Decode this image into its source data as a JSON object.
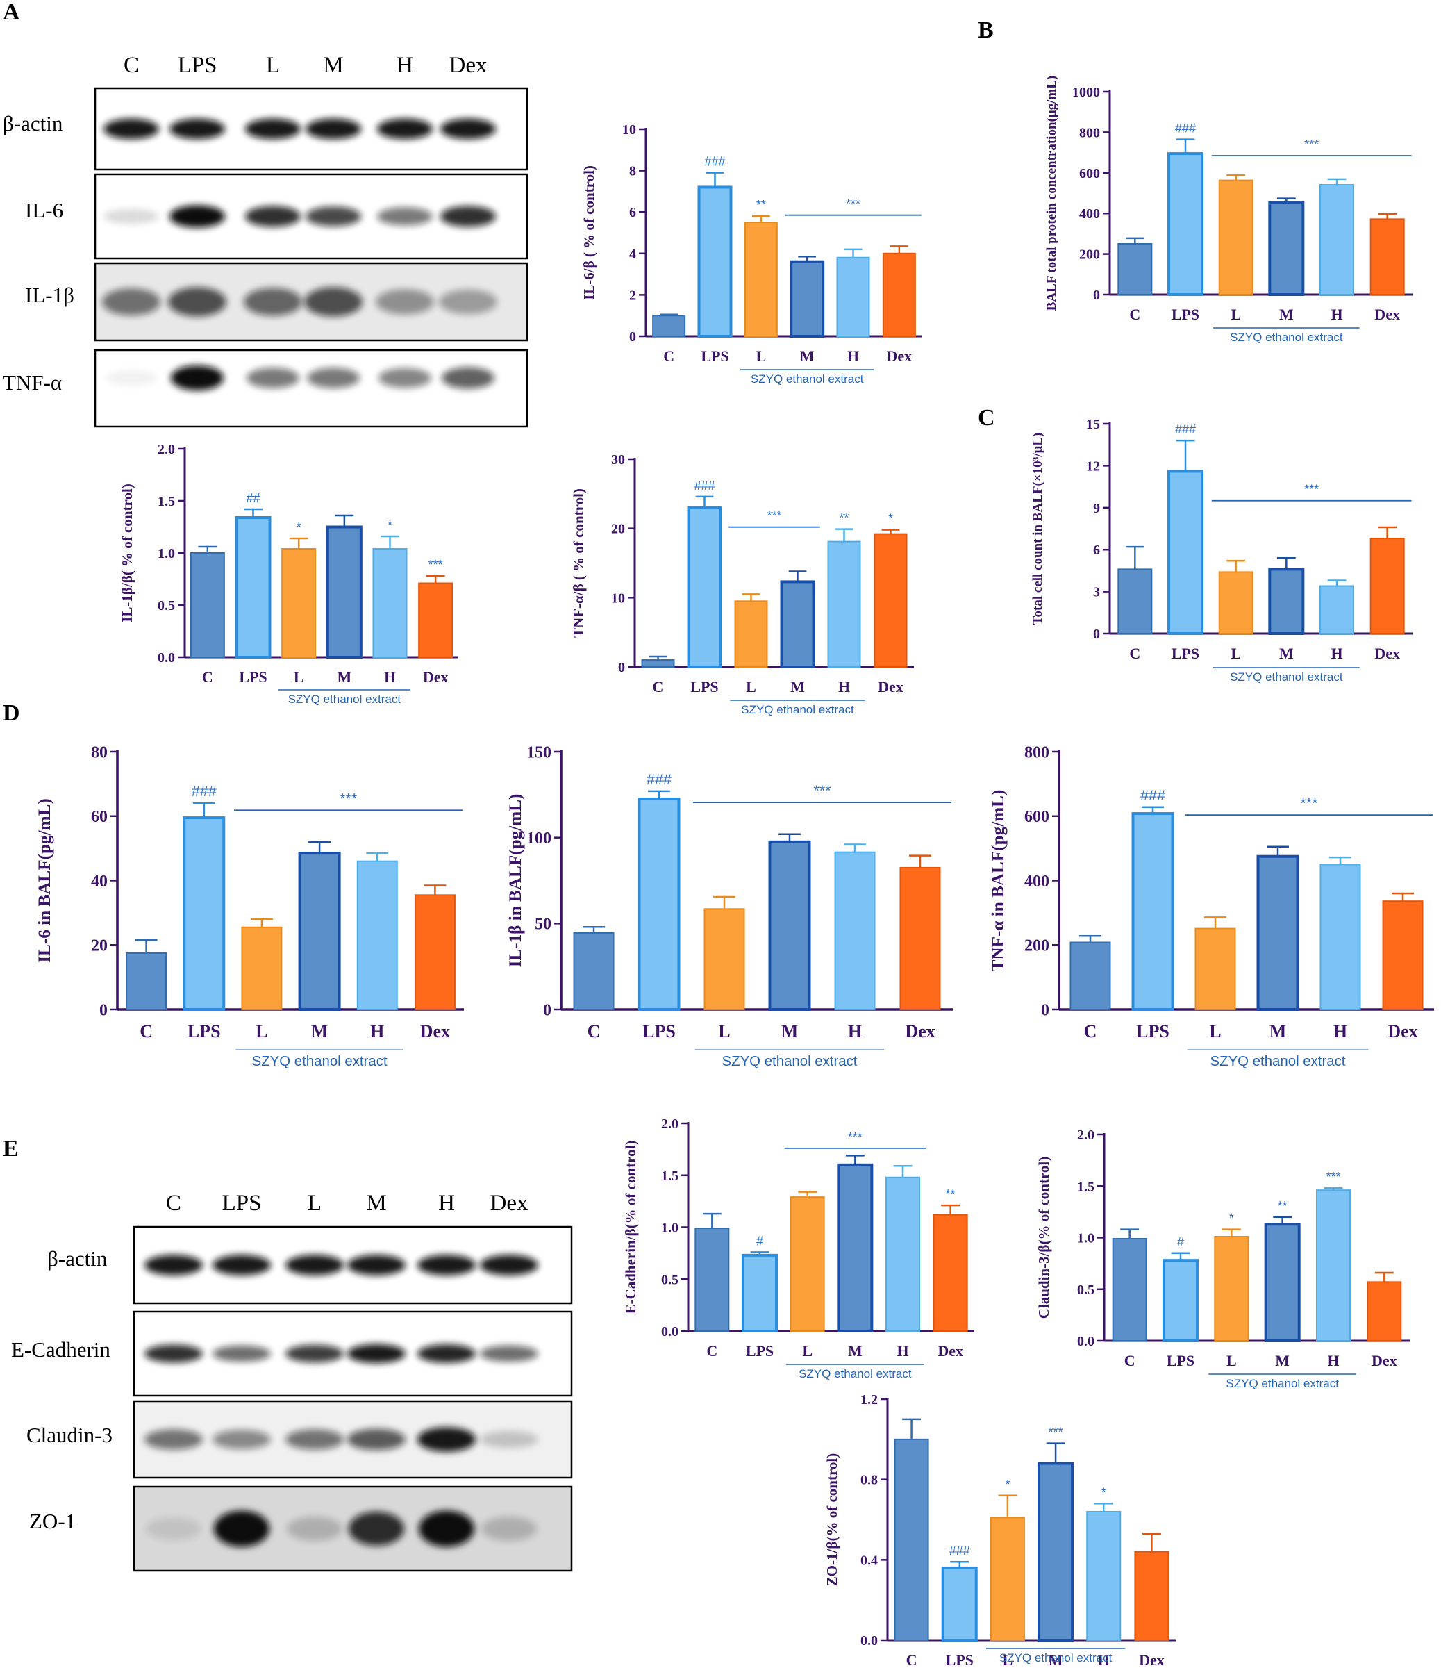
{
  "panels": {
    "A": "A",
    "B": "B",
    "C": "C",
    "D": "D",
    "E": "E"
  },
  "colors": {
    "C": "#5a8fc9",
    "LPS": "#7cc2f4",
    "L": "#fca13a",
    "M": "#5a8fc9",
    "H": "#7cc2f4",
    "Dex": "#fe6a1a",
    "axis": "#3b1466",
    "annotation": "#2e6fc7"
  },
  "blot_A": {
    "columns": [
      "C",
      "LPS",
      "L",
      "M",
      "H",
      "Dex"
    ],
    "rows": [
      "β-actin",
      "IL-6",
      "IL-1β",
      "TNF-α"
    ]
  },
  "blot_E": {
    "columns": [
      "C",
      "LPS",
      "L",
      "M",
      "H",
      "Dex"
    ],
    "rows": [
      "β-actin",
      "E-Cadherin",
      "Claudin-3",
      "ZO-1"
    ]
  },
  "chart_data": [
    {
      "id": "il6-wb",
      "type": "bar",
      "categories": [
        "C",
        "LPS",
        "L",
        "M",
        "H",
        "Dex"
      ],
      "values": [
        1.0,
        7.2,
        5.5,
        3.6,
        3.8,
        4.0
      ],
      "errors": [
        0.05,
        0.7,
        0.3,
        0.25,
        0.4,
        0.35
      ],
      "ylabel": "IL-6/β ( % of control)",
      "ylim": [
        0,
        10
      ],
      "yticks": [
        "0",
        "2",
        "4",
        "6",
        "8",
        "10"
      ],
      "group_label": "SZYQ ethanol extract",
      "annotations": [
        "",
        "###",
        "**",
        "",
        "",
        ""
      ],
      "bracket_label": "***"
    },
    {
      "id": "balf-protein",
      "type": "bar",
      "categories": [
        "C",
        "LPS",
        "L",
        "M",
        "H",
        "Dex"
      ],
      "values": [
        250,
        695,
        563,
        452,
        541,
        372
      ],
      "errors": [
        28,
        70,
        25,
        22,
        28,
        25
      ],
      "ylabel": "BALF total protein concentration(μg/mL)",
      "ylim": [
        0,
        1000
      ],
      "yticks": [
        "0",
        "200",
        "400",
        "600",
        "800",
        "1000"
      ],
      "group_label": "SZYQ ethanol extract",
      "annotations": [
        "",
        "###",
        "",
        "",
        "",
        ""
      ],
      "bracket_label": "***"
    },
    {
      "id": "il1b-wb",
      "type": "bar",
      "categories": [
        "C",
        "LPS",
        "L",
        "M",
        "H",
        "Dex"
      ],
      "values": [
        1.0,
        1.34,
        1.04,
        1.25,
        1.04,
        0.71
      ],
      "errors": [
        0.06,
        0.08,
        0.1,
        0.11,
        0.12,
        0.07
      ],
      "ylabel": "IL-1β/β( % of control)",
      "ylim": [
        0,
        2.0
      ],
      "yticks": [
        "0.0",
        "0.5",
        "1.0",
        "1.5",
        "2.0"
      ],
      "group_label": "SZYQ ethanol extract",
      "annotations": [
        "",
        "##",
        "*",
        "",
        "*",
        "***"
      ],
      "bracket_label": ""
    },
    {
      "id": "tnfa-wb",
      "type": "bar",
      "categories": [
        "C",
        "LPS",
        "L",
        "M",
        "H",
        "Dex"
      ],
      "values": [
        1.0,
        23.0,
        9.5,
        12.3,
        18.1,
        19.2
      ],
      "errors": [
        0.5,
        1.6,
        1.0,
        1.5,
        1.8,
        0.6
      ],
      "ylabel": "TNF-α/β ( % of control)",
      "ylim": [
        0,
        30
      ],
      "yticks": [
        "0",
        "10",
        "20",
        "30"
      ],
      "group_label": "SZYQ ethanol extract",
      "annotations": [
        "",
        "###",
        "",
        "",
        "**",
        "*"
      ],
      "bracket_label": "***"
    },
    {
      "id": "cell-count",
      "type": "bar",
      "categories": [
        "C",
        "LPS",
        "L",
        "M",
        "H",
        "Dex"
      ],
      "values": [
        4.6,
        11.6,
        4.4,
        4.6,
        3.4,
        6.8
      ],
      "errors": [
        1.6,
        2.2,
        0.8,
        0.8,
        0.4,
        0.8
      ],
      "ylabel": "Total cell count in BALF(×10³/μL)",
      "ylim": [
        0,
        15
      ],
      "yticks": [
        "0",
        "3",
        "6",
        "9",
        "12",
        "15"
      ],
      "group_label": "SZYQ ethanol extract",
      "annotations": [
        "",
        "###",
        "",
        "",
        "",
        ""
      ],
      "bracket_label": "***"
    },
    {
      "id": "il6-balf",
      "type": "bar",
      "categories": [
        "C",
        "LPS",
        "L",
        "M",
        "H",
        "Dex"
      ],
      "values": [
        17.5,
        59.5,
        25.5,
        48.5,
        46.0,
        35.5
      ],
      "errors": [
        4.0,
        4.5,
        2.5,
        3.5,
        2.5,
        3.0
      ],
      "ylabel": "IL-6 in BALF(pg/mL)",
      "ylim": [
        0,
        80
      ],
      "yticks": [
        "0",
        "20",
        "40",
        "60",
        "80"
      ],
      "group_label": "SZYQ ethanol extract",
      "annotations": [
        "",
        "###",
        "",
        "",
        "",
        ""
      ],
      "bracket_label": "***"
    },
    {
      "id": "il1b-balf",
      "type": "bar",
      "categories": [
        "C",
        "LPS",
        "L",
        "M",
        "H",
        "Dex"
      ],
      "values": [
        44.5,
        122.5,
        58.5,
        97.5,
        91.5,
        82.5
      ],
      "errors": [
        3.5,
        4.5,
        7.0,
        4.5,
        4.5,
        7.0
      ],
      "ylabel": "IL-1β in BALF(pg/mL)",
      "ylim": [
        0,
        150
      ],
      "yticks": [
        "0",
        "50",
        "100",
        "150"
      ],
      "group_label": "SZYQ ethanol extract",
      "annotations": [
        "",
        "###",
        "",
        "",
        "",
        ""
      ],
      "bracket_label": "***"
    },
    {
      "id": "tnfa-balf",
      "type": "bar",
      "categories": [
        "C",
        "LPS",
        "L",
        "M",
        "H",
        "Dex"
      ],
      "values": [
        208,
        608,
        251,
        475,
        450,
        336
      ],
      "errors": [
        20,
        20,
        35,
        30,
        22,
        24
      ],
      "ylabel": "TNF-α in BALF(pg/mL)",
      "ylim": [
        0,
        800
      ],
      "yticks": [
        "0",
        "200",
        "400",
        "600",
        "800"
      ],
      "group_label": "SZYQ ethanol extract",
      "annotations": [
        "",
        "###",
        "",
        "",
        "",
        ""
      ],
      "bracket_label": "***"
    },
    {
      "id": "ecad-wb",
      "type": "bar",
      "categories": [
        "C",
        "LPS",
        "L",
        "M",
        "H",
        "Dex"
      ],
      "values": [
        0.99,
        0.73,
        1.29,
        1.6,
        1.48,
        1.12
      ],
      "errors": [
        0.14,
        0.03,
        0.05,
        0.09,
        0.11,
        0.09
      ],
      "ylabel": "E-Cadherin/β(% of control)",
      "ylim": [
        0,
        2.0
      ],
      "yticks": [
        "0.0",
        "0.5",
        "1.0",
        "1.5",
        "2.0"
      ],
      "group_label": "SZYQ ethanol extract",
      "annotations": [
        "",
        "#",
        "",
        "",
        "",
        "**"
      ],
      "bracket_label": "***"
    },
    {
      "id": "claudin-wb",
      "type": "bar",
      "categories": [
        "C",
        "LPS",
        "L",
        "M",
        "H",
        "Dex"
      ],
      "values": [
        0.99,
        0.78,
        1.01,
        1.13,
        1.46,
        0.57
      ],
      "errors": [
        0.09,
        0.07,
        0.07,
        0.07,
        0.02,
        0.09
      ],
      "ylabel": "Claudin-3/β(% of control)",
      "ylim": [
        0,
        2.0
      ],
      "yticks": [
        "0.0",
        "0.5",
        "1.0",
        "1.5",
        "2.0"
      ],
      "group_label": "SZYQ ethanol extract",
      "annotations": [
        "",
        "#",
        "*",
        "**",
        "***",
        ""
      ],
      "bracket_label": ""
    },
    {
      "id": "zo1-wb",
      "type": "bar",
      "categories": [
        "C",
        "LPS",
        "L",
        "M",
        "H",
        "Dex"
      ],
      "values": [
        1.0,
        0.36,
        0.61,
        0.88,
        0.64,
        0.44
      ],
      "errors": [
        0.1,
        0.03,
        0.11,
        0.1,
        0.04,
        0.09
      ],
      "ylabel": "ZO-1/β(% of control)",
      "ylim": [
        0,
        1.2
      ],
      "yticks": [
        "0.0",
        "0.4",
        "0.8",
        "1.2"
      ],
      "group_label": "SZYQ ethanol extract",
      "annotations": [
        "",
        "###",
        "*",
        "***",
        "*",
        ""
      ],
      "bracket_label": ""
    }
  ]
}
